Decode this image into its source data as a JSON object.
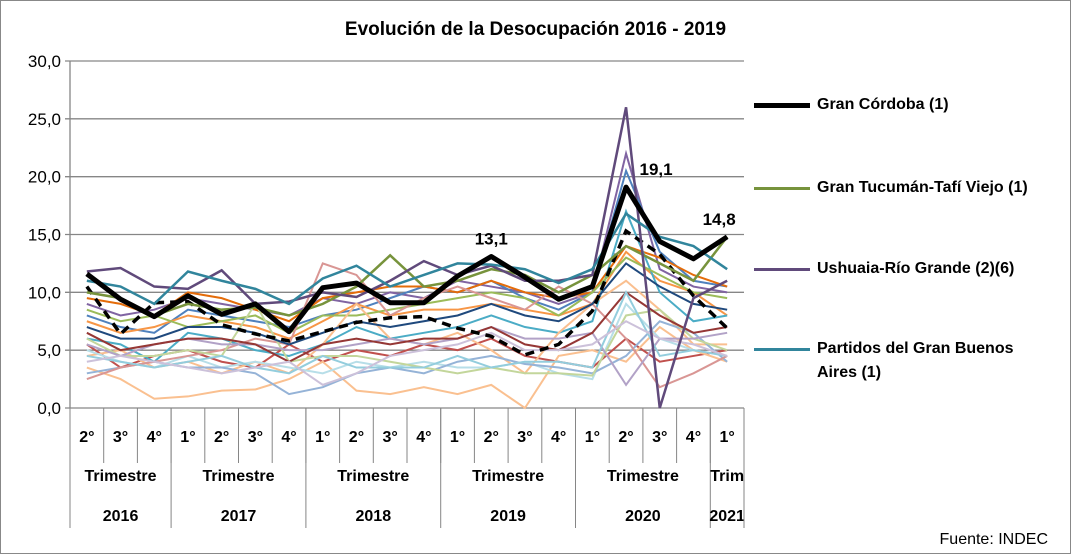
{
  "chart_data": {
    "type": "line",
    "title": "Evolución de la Desocupación  2016 - 2019",
    "source": "Fuente: INDEC",
    "ylim": [
      0,
      30
    ],
    "yticks": [
      "0,0",
      "5,0",
      "10,0",
      "15,0",
      "20,0",
      "25,0",
      "30,0"
    ],
    "grid": true,
    "legend_position": "right",
    "categories": [
      "2°",
      "3°",
      "4°",
      "1°",
      "2°",
      "3°",
      "4°",
      "1°",
      "2°",
      "3°",
      "4°",
      "1°",
      "2°",
      "3°",
      "4°",
      "1°",
      "2°",
      "3°",
      "4°",
      "1°"
    ],
    "groups": [
      {
        "label": "Trimestre",
        "year": "2016",
        "count": 3
      },
      {
        "label": "Trimestre",
        "year": "2017",
        "count": 4
      },
      {
        "label": "Trimestre",
        "year": "2018",
        "count": 4
      },
      {
        "label": "Trimestre",
        "year": "2019",
        "count": 4
      },
      {
        "label": "Trimestre",
        "year": "2020",
        "count": 4
      },
      {
        "label": "Trim",
        "year": "2021",
        "count": 1
      }
    ],
    "series": [
      {
        "name": "Gran Córdoba (1)",
        "color": "#000000",
        "highlight": true,
        "values": [
          11.6,
          9.4,
          7.9,
          9.7,
          8.1,
          9.0,
          6.6,
          10.4,
          10.8,
          9.1,
          9.1,
          11.4,
          13.1,
          11.3,
          9.4,
          10.5,
          19.1,
          14.4,
          12.9,
          14.8
        ]
      },
      {
        "name": "Gran Tucumán-Tafí Viejo (1)",
        "color": "#77933c",
        "values": [
          10.0,
          9.5,
          8.0,
          9.0,
          8.5,
          8.7,
          8.0,
          9.0,
          10.5,
          13.2,
          10.5,
          11.0,
          12.0,
          11.5,
          10.0,
          11.5,
          14.0,
          12.5,
          11.0,
          14.8
        ]
      },
      {
        "name": "Ushuaia-Río Grande (2)(6)",
        "color": "#604a7b",
        "values": [
          11.8,
          12.1,
          10.5,
          10.3,
          11.9,
          9.0,
          9.2,
          10.0,
          9.6,
          11.0,
          12.7,
          11.5,
          12.3,
          11.0,
          11.0,
          11.5,
          26.0,
          0.0,
          9.5,
          11.0
        ]
      },
      {
        "name": "Partidos del Gran Buenos Aires (1)",
        "color": "#31859c",
        "values": [
          11.0,
          10.5,
          9.0,
          11.8,
          11.0,
          10.3,
          9.0,
          11.2,
          12.3,
          10.5,
          11.5,
          12.5,
          12.4,
          12.0,
          10.8,
          12.0,
          16.8,
          14.8,
          14.0,
          12.0
        ]
      }
    ],
    "dashed_series": {
      "color": "#000000",
      "values": [
        10.5,
        6.4,
        9.1,
        9.2,
        7.2,
        6.4,
        5.8,
        6.6,
        7.4,
        7.8,
        7.9,
        6.9,
        6.2,
        4.6,
        5.5,
        8.4,
        15.3,
        13.3,
        9.7,
        6.9
      ]
    },
    "background_series": [
      {
        "color": "#8064a2",
        "values": [
          9.0,
          8.0,
          8.5,
          9.5,
          9.0,
          8.5,
          8.0,
          9.5,
          9.0,
          10.0,
          9.5,
          11.0,
          10.5,
          10.0,
          9.0,
          10.0,
          22.0,
          12.0,
          10.5,
          10.0
        ]
      },
      {
        "color": "#4f81bd",
        "values": [
          8.0,
          7.0,
          6.5,
          8.5,
          8.0,
          7.5,
          7.0,
          8.0,
          8.5,
          9.5,
          10.5,
          10.0,
          11.0,
          9.5,
          8.5,
          10.0,
          20.5,
          13.5,
          11.0,
          10.5
        ]
      },
      {
        "color": "#c0504d",
        "values": [
          5.5,
          3.5,
          4.5,
          5.0,
          4.0,
          3.5,
          5.5,
          4.0,
          5.0,
          4.5,
          5.5,
          5.0,
          6.0,
          4.5,
          4.0,
          3.5,
          6.0,
          4.0,
          4.5,
          5.0
        ]
      },
      {
        "color": "#f79646",
        "values": [
          7.5,
          6.5,
          7.0,
          8.0,
          7.5,
          7.0,
          6.0,
          7.5,
          9.0,
          8.0,
          8.5,
          8.5,
          9.0,
          8.5,
          8.0,
          9.0,
          13.5,
          11.0,
          10.0,
          8.0
        ]
      },
      {
        "color": "#e46c0a",
        "values": [
          9.5,
          9.0,
          8.0,
          10.0,
          9.5,
          8.5,
          7.5,
          9.5,
          10.0,
          10.5,
          10.5,
          10.0,
          11.0,
          10.0,
          9.5,
          10.0,
          14.0,
          13.0,
          11.5,
          10.5
        ]
      },
      {
        "color": "#4bacc6",
        "values": [
          6.0,
          5.5,
          4.0,
          6.5,
          6.0,
          5.0,
          4.5,
          5.5,
          7.0,
          6.0,
          6.5,
          7.0,
          8.0,
          7.0,
          6.5,
          7.5,
          17.0,
          10.0,
          7.5,
          8.0
        ]
      },
      {
        "color": "#9bbb59",
        "values": [
          8.5,
          7.5,
          8.0,
          7.0,
          7.5,
          8.0,
          6.5,
          8.0,
          8.0,
          8.5,
          9.0,
          9.5,
          10.0,
          9.5,
          8.0,
          10.0,
          13.0,
          11.5,
          10.0,
          9.5
        ]
      },
      {
        "color": "#fac090",
        "values": [
          3.5,
          2.5,
          0.8,
          1.0,
          1.5,
          1.6,
          2.5,
          4.0,
          1.5,
          1.2,
          1.8,
          1.2,
          2.0,
          0.0,
          4.5,
          5.0,
          4.0,
          7.0,
          5.0,
          4.0
        ]
      },
      {
        "color": "#fabf8f",
        "values": [
          4.5,
          5.0,
          3.5,
          4.0,
          3.0,
          4.0,
          3.0,
          5.5,
          9.0,
          6.0,
          5.5,
          6.5,
          5.0,
          3.0,
          6.5,
          9.0,
          11.0,
          8.5,
          5.5,
          5.5
        ]
      },
      {
        "color": "#b7dee8",
        "values": [
          5.0,
          4.0,
          3.5,
          4.5,
          3.5,
          4.0,
          3.5,
          3.0,
          4.0,
          3.5,
          4.0,
          3.5,
          3.5,
          4.0,
          3.0,
          2.5,
          9.0,
          6.0,
          5.0,
          4.5
        ]
      },
      {
        "color": "#95b3d7",
        "values": [
          3.0,
          3.5,
          4.0,
          3.5,
          3.5,
          3.0,
          1.2,
          1.8,
          3.0,
          3.5,
          3.0,
          4.0,
          4.5,
          3.8,
          3.5,
          3.0,
          4.5,
          7.5,
          6.5,
          4.0
        ]
      },
      {
        "color": "#d99694",
        "values": [
          2.5,
          3.5,
          4.0,
          4.5,
          5.0,
          6.0,
          5.5,
          12.5,
          11.5,
          8.0,
          9.5,
          10.5,
          9.5,
          8.5,
          10.5,
          9.0,
          6.0,
          1.8,
          3.0,
          4.5
        ]
      },
      {
        "color": "#c3d69b",
        "values": [
          6.0,
          4.5,
          4.5,
          5.0,
          4.5,
          9.0,
          4.0,
          4.5,
          4.5,
          4.0,
          3.5,
          3.0,
          3.5,
          3.0,
          3.0,
          2.8,
          8.0,
          8.5,
          6.0,
          5.0
        ]
      },
      {
        "color": "#b2a2c7",
        "values": [
          5.5,
          4.5,
          5.5,
          6.0,
          5.5,
          5.5,
          5.0,
          5.0,
          5.5,
          6.0,
          5.5,
          6.0,
          7.0,
          6.0,
          6.0,
          6.5,
          2.0,
          6.0,
          6.0,
          6.5
        ]
      },
      {
        "color": "#1f497d",
        "values": [
          7.0,
          6.0,
          6.0,
          7.0,
          7.0,
          6.5,
          5.5,
          6.5,
          7.5,
          7.0,
          7.5,
          8.0,
          9.0,
          8.0,
          7.5,
          9.0,
          12.5,
          10.5,
          9.0,
          8.5
        ]
      },
      {
        "color": "#953735",
        "values": [
          6.5,
          5.0,
          5.5,
          6.0,
          6.0,
          5.5,
          4.0,
          5.5,
          6.0,
          5.5,
          6.0,
          6.0,
          7.0,
          5.5,
          5.0,
          6.5,
          10.0,
          8.0,
          6.5,
          7.0
        ]
      },
      {
        "color": "#93cddd",
        "values": [
          4.5,
          4.0,
          3.5,
          4.0,
          4.5,
          3.5,
          3.0,
          4.5,
          3.5,
          3.5,
          3.5,
          4.5,
          3.5,
          4.0,
          4.0,
          3.5,
          10.0,
          4.5,
          5.0,
          4.5
        ]
      },
      {
        "color": "#ccc1da",
        "values": [
          4.0,
          4.5,
          4.0,
          3.5,
          3.0,
          3.5,
          4.0,
          2.0,
          3.0,
          4.5,
          5.0,
          5.5,
          6.5,
          5.0,
          5.0,
          5.5,
          7.5,
          6.0,
          5.5,
          4.5
        ]
      }
    ],
    "data_labels": [
      {
        "index": 12,
        "text": "13,1"
      },
      {
        "index": 16,
        "text": "19,1"
      },
      {
        "index": 19,
        "text": "14,8"
      }
    ]
  }
}
